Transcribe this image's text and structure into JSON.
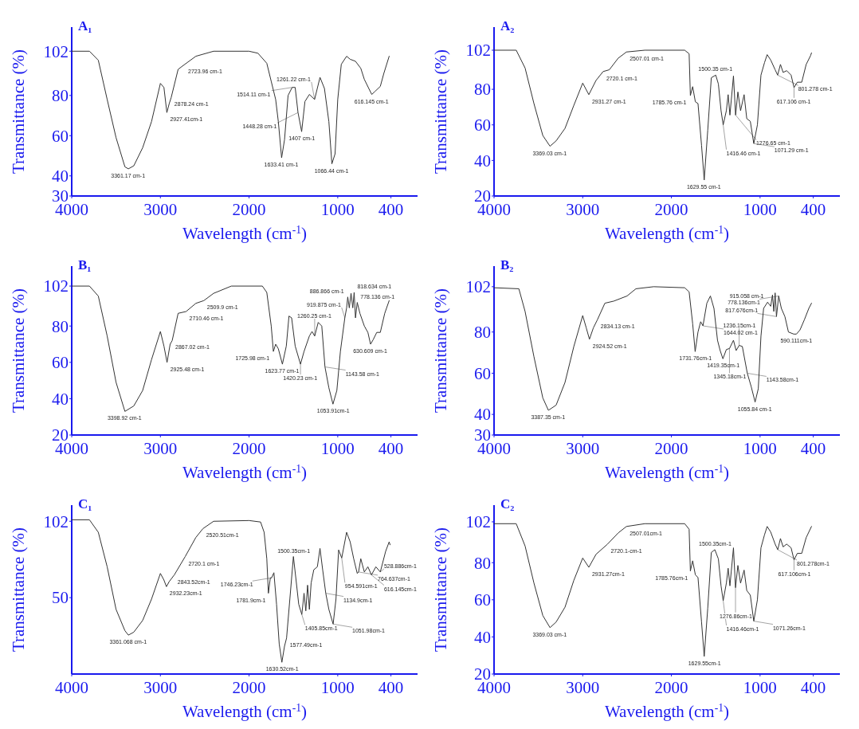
{
  "chart_data": [
    {
      "type": "line",
      "title": "A₁",
      "xlabel": "Wavelength (cm$^{-1}$)",
      "ylabel": "Transmittance (%)",
      "xlim": [
        4000,
        100
      ],
      "xticks": [
        4000,
        3000,
        2000,
        1000,
        400
      ],
      "ylim": [
        30,
        114
      ],
      "yticks": [
        102,
        80,
        60,
        40,
        30
      ],
      "series": [
        {
          "color": "#333333",
          "x": [
            4000,
            3800,
            3700,
            3600,
            3500,
            3400,
            3361,
            3300,
            3200,
            3100,
            3000,
            2960,
            2927,
            2900,
            2878,
            2800,
            2724,
            2600,
            2400,
            2000,
            1900,
            1800,
            1750,
            1700,
            1670,
            1633,
            1600,
            1560,
            1514,
            1480,
            1448,
            1407,
            1370,
            1320,
            1261,
            1200,
            1150,
            1100,
            1066,
            1030,
            1000,
            960,
            900,
            860,
            800,
            740,
            700,
            650,
            616,
            580,
            520,
            480,
            420
          ],
          "values": [
            102,
            102,
            97.5,
            78,
            59,
            44.5,
            43.5,
            45,
            54,
            67,
            86,
            84,
            71.5,
            76,
            79,
            93,
            95.5,
            99.5,
            102,
            102,
            101,
            96,
            87,
            78,
            67,
            49,
            58,
            80,
            84,
            84,
            71.5,
            62,
            77,
            80.5,
            78,
            89,
            83.5,
            67,
            46,
            51,
            78,
            95.5,
            99.5,
            98,
            97,
            93.5,
            88,
            83.5,
            80.5,
            82,
            84.5,
            91,
            99.5
          ]
        }
      ],
      "annotations": [
        {
          "text": "3361.17 cm-1",
          "x": 3361,
          "y": 43.5
        },
        {
          "text": "2878.24 cm-1",
          "x": 2878,
          "y": 79
        },
        {
          "text": "2927.41cm-1",
          "x": 2927,
          "y": 71.5
        },
        {
          "text": "2723.96 cm-1",
          "x": 2724,
          "y": 95.5
        },
        {
          "text": "1633.41 cm-1",
          "x": 1633,
          "y": 49
        },
        {
          "text": "1514.11 cm-1",
          "x": 1514,
          "y": 84
        },
        {
          "text": "1448.28 cm-1",
          "x": 1448,
          "y": 71.5
        },
        {
          "text": "1407 cm-1",
          "x": 1407,
          "y": 62
        },
        {
          "text": "1261.22 cm-1",
          "x": 1261,
          "y": 78
        },
        {
          "text": "1066.44 cm-1",
          "x": 1066,
          "y": 46
        },
        {
          "text": "616.145 cm-1",
          "x": 616,
          "y": 80.5
        }
      ]
    },
    {
      "type": "line",
      "title": "A₂",
      "xlabel": "Wavelength (cm$^{-1}$)",
      "ylabel": "Transmittance (%)",
      "xlim": [
        4000,
        100
      ],
      "xticks": [
        4000,
        3000,
        2000,
        1000,
        400
      ],
      "ylim": [
        20,
        115
      ],
      "yticks": [
        102,
        80,
        60,
        40,
        20
      ],
      "series": [
        {
          "color": "#333333",
          "x": [
            4000,
            3750,
            3650,
            3550,
            3450,
            3369,
            3300,
            3200,
            3100,
            3000,
            2931,
            2850,
            2770,
            2700,
            2600,
            2507,
            2300,
            1850,
            1800,
            1786,
            1760,
            1730,
            1700,
            1660,
            1630,
            1590,
            1550,
            1500,
            1470,
            1440,
            1416,
            1380,
            1360,
            1340,
            1300,
            1276,
            1250,
            1220,
            1180,
            1150,
            1110,
            1071,
            1030,
            990,
            950,
            920,
            880,
            830,
            802,
            770,
            740,
            700,
            650,
            617,
            580,
            530,
            480,
            430,
            420
          ],
          "values": [
            102,
            102,
            92,
            72,
            54,
            48,
            51,
            58,
            71,
            83.5,
            77,
            85,
            90,
            91,
            97.5,
            101,
            102,
            102,
            100,
            76.5,
            81.5,
            73,
            72,
            48.5,
            29,
            57,
            86.5,
            88,
            83,
            68,
            60,
            68,
            77,
            65.5,
            87.5,
            65.5,
            78.5,
            68,
            77,
            63.5,
            62,
            49.5,
            60,
            88,
            95,
            99.5,
            96.5,
            91,
            88,
            94,
            89.5,
            90.5,
            88,
            81,
            84,
            84,
            94,
            99,
            100.5
          ]
        }
      ],
      "annotations": [
        {
          "text": "3369.03 cm-1",
          "x": 3369,
          "y": 48
        },
        {
          "text": "2931.27 cm-1",
          "x": 2931,
          "y": 77
        },
        {
          "text": "2720.1 cm-1",
          "x": 2770,
          "y": 90
        },
        {
          "text": "2507.01 cm-1",
          "x": 2507,
          "y": 101
        },
        {
          "text": "1785.76 cm-1",
          "x": 1786,
          "y": 76.5
        },
        {
          "text": "1629.55 cm-1",
          "x": 1630,
          "y": 29
        },
        {
          "text": "1500.35 cm-1",
          "x": 1500,
          "y": 88
        },
        {
          "text": "1416.46 cm-1",
          "x": 1416,
          "y": 60
        },
        {
          "text": "1276.65 cm-1",
          "x": 1276,
          "y": 65.5
        },
        {
          "text": "1071.29 cm-1",
          "x": 1071,
          "y": 49.5
        },
        {
          "text": "801.278 cm-1",
          "x": 802,
          "y": 88
        },
        {
          "text": "617.106 cm-1",
          "x": 617,
          "y": 81
        }
      ]
    },
    {
      "type": "line",
      "title": "B₁",
      "xlabel": "Wavelength (cm$^{-1}$)",
      "ylabel": "Transmittance (%)",
      "xlim": [
        4000,
        100
      ],
      "xticks": [
        4000,
        3000,
        2000,
        1000,
        400
      ],
      "ylim": [
        20,
        113
      ],
      "yticks": [
        102,
        80,
        60,
        40,
        20
      ],
      "series": [
        {
          "color": "#333333",
          "x": [
            4000,
            3800,
            3700,
            3600,
            3500,
            3400,
            3300,
            3200,
            3100,
            3000,
            2960,
            2925,
            2890,
            2867,
            2800,
            2710,
            2600,
            2510,
            2400,
            2200,
            1850,
            1800,
            1750,
            1726,
            1700,
            1670,
            1624,
            1580,
            1550,
            1520,
            1480,
            1420,
            1380,
            1320,
            1290,
            1260,
            1220,
            1180,
            1144,
            1100,
            1054,
            1010,
            970,
            920,
            900,
            887,
            870,
            850,
            830,
            815,
            800,
            780,
            750,
            700,
            660,
            630,
            600,
            560,
            520,
            470,
            420
          ],
          "values": [
            102,
            102,
            96.5,
            74.5,
            49,
            33,
            36,
            44.5,
            61.5,
            77,
            69,
            60,
            70,
            72,
            87,
            88,
            92.5,
            94,
            98,
            102,
            102,
            98.5,
            80,
            66,
            70,
            67.5,
            59,
            69,
            85.5,
            84.5,
            69,
            59,
            66,
            74.5,
            77,
            74.5,
            82,
            80,
            57.5,
            46,
            37,
            44.5,
            66,
            84.5,
            90,
            96,
            90,
            98,
            90,
            98.5,
            84.5,
            93,
            87,
            80,
            76.5,
            70,
            72.5,
            76.5,
            76.5,
            87,
            94
          ]
        }
      ],
      "annotations": [
        {
          "text": "3398.92 cm-1",
          "x": 3400,
          "y": 33
        },
        {
          "text": "2925.48 cm-1",
          "x": 2925,
          "y": 60
        },
        {
          "text": "2867.02 cm-1",
          "x": 2867,
          "y": 72
        },
        {
          "text": "2710.46 cm-1",
          "x": 2710,
          "y": 88
        },
        {
          "text": "2509.9 cm-1",
          "x": 2510,
          "y": 94
        },
        {
          "text": "1725.98 cm-1",
          "x": 1726,
          "y": 66
        },
        {
          "text": "1623.77 cm-1",
          "x": 1624,
          "y": 59
        },
        {
          "text": "1420.23 cm-1",
          "x": 1420,
          "y": 59
        },
        {
          "text": "1260.25 cm-1",
          "x": 1260,
          "y": 74.5
        },
        {
          "text": "1143.58 cm-1",
          "x": 1144,
          "y": 57.5
        },
        {
          "text": "1053.91cm-1",
          "x": 1054,
          "y": 37
        },
        {
          "text": "919.875 cm-1",
          "x": 920,
          "y": 84.5
        },
        {
          "text": "886.866 cm-1",
          "x": 887,
          "y": 96
        },
        {
          "text": "818.634 cm-1",
          "x": 815,
          "y": 98.5
        },
        {
          "text": "778.136 cm-1",
          "x": 780,
          "y": 93
        },
        {
          "text": "630.609 cm-1",
          "x": 630,
          "y": 70
        }
      ]
    },
    {
      "type": "line",
      "title": "B₂",
      "xlabel": "Wavelength (cm$^{-1}$)",
      "ylabel": "Transmittance (%)",
      "xlim": [
        4000,
        100
      ],
      "xticks": [
        4000,
        3000,
        2000,
        1000,
        400
      ],
      "ylim": [
        30,
        112
      ],
      "yticks": [
        102,
        80,
        60,
        40,
        30
      ],
      "series": [
        {
          "color": "#333333",
          "x": [
            4000,
            3720,
            3650,
            3550,
            3450,
            3387,
            3300,
            3200,
            3100,
            3000,
            2960,
            2924,
            2880,
            2834,
            2750,
            2650,
            2500,
            2400,
            2200,
            1850,
            1800,
            1760,
            1732,
            1700,
            1670,
            1644,
            1600,
            1560,
            1520,
            1480,
            1450,
            1419,
            1380,
            1345,
            1300,
            1270,
            1236,
            1200,
            1170,
            1144,
            1100,
            1056,
            1020,
            990,
            960,
            915,
            880,
            860,
            845,
            830,
            815,
            790,
            760,
            720,
            680,
            620,
            590,
            550,
            500,
            450,
            420
          ],
          "values": [
            101.5,
            101,
            90,
            68,
            48,
            42,
            44.5,
            55.5,
            73,
            88,
            82,
            76.5,
            82,
            86,
            94,
            95,
            97.5,
            101,
            102,
            101.5,
            99.5,
            84,
            70.5,
            80,
            85,
            83,
            94,
            97.5,
            91.5,
            76,
            71,
            67,
            71.5,
            72,
            76,
            71,
            73.5,
            73,
            66,
            60,
            53.5,
            46,
            52.5,
            78,
            91.5,
            94.5,
            92.5,
            98,
            90,
            99,
            87.5,
            97.5,
            91.5,
            87.5,
            80,
            79,
            79,
            81,
            86,
            91.5,
            94
          ]
        }
      ],
      "annotations": [
        {
          "text": "3387.35 cm-1",
          "x": 3387,
          "y": 42
        },
        {
          "text": "2924.52 cm-1",
          "x": 2924,
          "y": 76.5
        },
        {
          "text": "2834.13 cm-1",
          "x": 2834,
          "y": 86
        },
        {
          "text": "1731.76cm-1",
          "x": 1732,
          "y": 70.5
        },
        {
          "text": "1644.02 cm-1",
          "x": 1644,
          "y": 83
        },
        {
          "text": "1419.35cm-1",
          "x": 1419,
          "y": 67
        },
        {
          "text": "1345.18cm-1",
          "x": 1345,
          "y": 72
        },
        {
          "text": "1236.15cm-1",
          "x": 1236,
          "y": 73.5
        },
        {
          "text": "1143.58cm-1",
          "x": 1144,
          "y": 60
        },
        {
          "text": "1055.84 cm-1",
          "x": 1056,
          "y": 46
        },
        {
          "text": "915.058 cm-1",
          "x": 915,
          "y": 94.5
        },
        {
          "text": "817.676cm-1",
          "x": 815,
          "y": 87.5
        },
        {
          "text": "778.136cm-1",
          "x": 790,
          "y": 97.5
        },
        {
          "text": "590.111cm-1",
          "x": 590,
          "y": 79
        }
      ]
    },
    {
      "type": "line",
      "title": "C₁",
      "xlabel": "Wavelength (cm$^{-1}$)",
      "ylabel": "Transmittance (%)",
      "xlim": [
        4000,
        100
      ],
      "xticks": [
        4000,
        3000,
        2000,
        1000,
        400
      ],
      "ylim": [
        -2,
        113
      ],
      "yticks": [
        102,
        50
      ],
      "series": [
        {
          "color": "#333333",
          "x": [
            4000,
            3800,
            3700,
            3600,
            3500,
            3400,
            3361,
            3300,
            3200,
            3100,
            3000,
            2960,
            2932,
            2900,
            2843,
            2720,
            2600,
            2520,
            2400,
            2000,
            1870,
            1830,
            1800,
            1782,
            1760,
            1746,
            1720,
            1690,
            1660,
            1630,
            1600,
            1577,
            1540,
            1500,
            1470,
            1440,
            1405,
            1380,
            1360,
            1340,
            1320,
            1300,
            1270,
            1230,
            1200,
            1170,
            1135,
            1100,
            1052,
            1020,
            990,
            955,
            900,
            860,
            820,
            780,
            765,
            740,
            700,
            660,
            620,
            570,
            520,
            460,
            420,
            410
          ],
          "values": [
            103,
            103,
            94.5,
            71,
            42,
            27.5,
            24.5,
            26.5,
            34.5,
            49,
            66.5,
            62,
            57.5,
            61,
            65.5,
            78,
            91,
            97,
            102,
            102.5,
            101.5,
            94.5,
            76.5,
            53,
            63.5,
            63.5,
            67,
            45.5,
            18.5,
            6,
            17,
            22.5,
            49,
            78,
            62,
            45.5,
            38.5,
            53,
            41,
            58.5,
            42,
            60,
            69,
            71,
            83.5,
            69,
            53,
            42,
            32,
            49,
            82.5,
            77,
            94.5,
            88,
            76.5,
            66.5,
            67.5,
            76.5,
            67.5,
            71,
            65.5,
            71,
            67.5,
            81.5,
            88,
            86
          ]
        }
      ],
      "annotations": [
        {
          "text": "3361.068 cm-1",
          "x": 3361,
          "y": 24.5
        },
        {
          "text": "2932.23cm-1",
          "x": 2932,
          "y": 57.5
        },
        {
          "text": "2843.52cm-1",
          "x": 2843,
          "y": 65.5
        },
        {
          "text": "2720.1 cm-1",
          "x": 2720,
          "y": 78
        },
        {
          "text": "2520.51cm-1",
          "x": 2520,
          "y": 97
        },
        {
          "text": "1781.9cm-1",
          "x": 1782,
          "y": 53
        },
        {
          "text": "1746.23cm-1",
          "x": 1746,
          "y": 63.5
        },
        {
          "text": "1500.35cm-1",
          "x": 1500,
          "y": 78
        },
        {
          "text": "1577.49cm-1",
          "x": 1577,
          "y": 22.5
        },
        {
          "text": "1630.52cm-1",
          "x": 1630,
          "y": 6
        },
        {
          "text": "1405.85cm-1",
          "x": 1405,
          "y": 38.5
        },
        {
          "text": "1134.9cm-1",
          "x": 1135,
          "y": 53
        },
        {
          "text": "1051.98cm-1",
          "x": 1052,
          "y": 32
        },
        {
          "text": "954.591cm-1",
          "x": 955,
          "y": 77
        },
        {
          "text": "764.637cm-1",
          "x": 765,
          "y": 67.5
        },
        {
          "text": "616.145cm-1",
          "x": 620,
          "y": 65.5
        },
        {
          "text": "528.886cm-1",
          "x": 520,
          "y": 67.5
        }
      ]
    },
    {
      "type": "line",
      "title": "C₂",
      "xlabel": "Wavelength (cm$^{-1}$)",
      "ylabel": "Transmittance (%)",
      "xlim": [
        4000,
        100
      ],
      "xticks": [
        4000,
        3000,
        2000,
        1000,
        400
      ],
      "ylim": [
        20,
        111
      ],
      "yticks": [
        102,
        80,
        60,
        40,
        20
      ],
      "series": [
        {
          "color": "#333333",
          "x": [
            4000,
            3750,
            3650,
            3550,
            3450,
            3369,
            3300,
            3200,
            3100,
            3000,
            2931,
            2850,
            2720,
            2600,
            2507,
            2300,
            1850,
            1800,
            1786,
            1760,
            1730,
            1700,
            1660,
            1630,
            1590,
            1550,
            1510,
            1470,
            1440,
            1416,
            1380,
            1360,
            1340,
            1300,
            1277,
            1250,
            1220,
            1180,
            1150,
            1110,
            1071,
            1030,
            990,
            950,
            920,
            880,
            830,
            801,
            770,
            740,
            700,
            650,
            617,
            580,
            530,
            480,
            420
          ],
          "values": [
            101,
            101,
            89,
            69,
            51.5,
            45,
            48,
            56,
            70.5,
            82.5,
            77.5,
            84.5,
            90,
            96,
            99.5,
            101,
            101,
            98,
            75.5,
            81,
            73.5,
            72,
            48,
            29.5,
            55.5,
            85.5,
            87,
            82,
            67.5,
            59.5,
            69,
            77,
            67.5,
            88,
            66.5,
            78.5,
            69,
            76,
            65,
            62.5,
            48.5,
            60,
            88,
            95,
            99.5,
            96.5,
            90,
            87,
            93,
            88.5,
            90,
            88,
            81.5,
            85,
            85,
            93.5,
            99.5
          ]
        }
      ],
      "annotations": [
        {
          "text": "3369.03 cm-1",
          "x": 3369,
          "y": 45
        },
        {
          "text": "2931.27cm-1",
          "x": 2931,
          "y": 77.5
        },
        {
          "text": "2720.1-cm-1",
          "x": 2720,
          "y": 90
        },
        {
          "text": "2507.01cm-1",
          "x": 2507,
          "y": 99.5
        },
        {
          "text": "1785.76cm-1",
          "x": 1786,
          "y": 75.5
        },
        {
          "text": "1629.55cm-1",
          "x": 1630,
          "y": 29.5
        },
        {
          "text": "1500.35cm-1",
          "x": 1510,
          "y": 87
        },
        {
          "text": "1416.46cm-1",
          "x": 1416,
          "y": 59.5
        },
        {
          "text": "1276.86cm-1",
          "x": 1277,
          "y": 66.5
        },
        {
          "text": "1071.26cm-1",
          "x": 1071,
          "y": 48.5
        },
        {
          "text": "801.278cm-1",
          "x": 801,
          "y": 87
        },
        {
          "text": "617.106cm-1",
          "x": 617,
          "y": 81.5
        }
      ]
    }
  ]
}
